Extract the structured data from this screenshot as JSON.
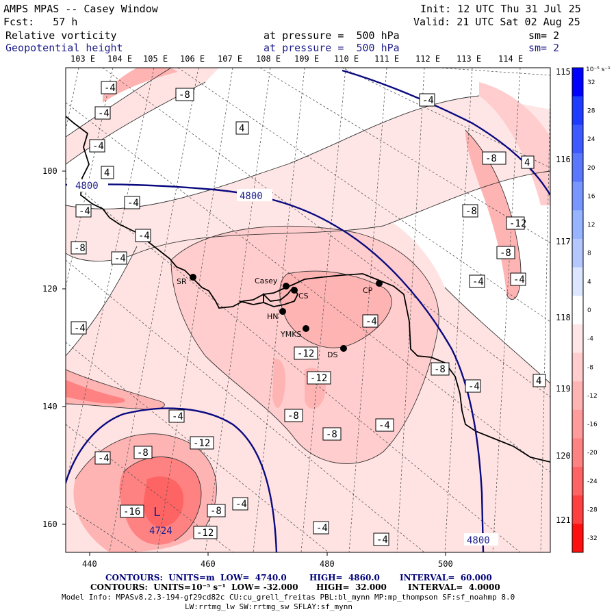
{
  "header": {
    "title": "AMPS MPAS -- Casey Window",
    "forecast": "Fcst:   57 h",
    "init": "Init: 12 UTC Thu 31 Jul 25",
    "valid": "Valid: 21 UTC Sat 02 Aug 25",
    "field1": {
      "name": "Relative vorticity",
      "level": "at pressure =  500 hPa",
      "smooth": "sm= 2"
    },
    "field2": {
      "name": "Geopotential height",
      "level": "at pressure =  500 hPa",
      "smooth": "sm= 2"
    }
  },
  "map": {
    "top_longitudes": [
      "103 E",
      "104 E",
      "105 E",
      "106 E",
      "107 E",
      "108 E",
      "109 E",
      "110 E",
      "111 E",
      "112 E",
      "113 E",
      "114 E"
    ],
    "right_longitudes": [
      "115 E",
      "116 E",
      "117 E",
      "118 E",
      "119 E",
      "120 E",
      "121 E"
    ],
    "x_ticks": [
      "440",
      "460",
      "480",
      "500"
    ],
    "y_ticks": [
      "100",
      "120",
      "140",
      "160"
    ],
    "stations": [
      {
        "code": "SR"
      },
      {
        "code": "Casey"
      },
      {
        "code": "CS"
      },
      {
        "code": "HN"
      },
      {
        "code": "YMKS"
      },
      {
        "code": "DS"
      },
      {
        "code": "CP"
      }
    ],
    "height_labels": [
      "4800",
      "4800",
      "4800",
      "4724"
    ],
    "low_marker": "L",
    "vorticity_labels": [
      "-4",
      "-8",
      "-4",
      "-4",
      "4",
      "4",
      "-4",
      "-4",
      "-4",
      "-4",
      "-8",
      "-4",
      "-8",
      "-12",
      "-12",
      "-12",
      "-8",
      "-8",
      "-8",
      "-4",
      "-4",
      "-4",
      "-4",
      "-4",
      "-8",
      "-16",
      "-8",
      "-12",
      "-4",
      "-4",
      "-4",
      "-4",
      "-12",
      "-8",
      "-8",
      "4",
      "4",
      "-4",
      "-4"
    ]
  },
  "colorbar": {
    "unit": "10⁻⁵ s⁻¹",
    "labels": [
      "32",
      "28",
      "24",
      "20",
      "16",
      "12",
      "8",
      "4",
      "0",
      "-4",
      "-8",
      "-12",
      "-16",
      "-20",
      "-24",
      "-28",
      "-32"
    ],
    "colors": [
      "#0000ff",
      "#1e3cff",
      "#3c5aff",
      "#5a78ff",
      "#7896ff",
      "#96b4ff",
      "#b4c8ff",
      "#dce6ff",
      "#ffffff",
      "#ffe6e6",
      "#ffcdcd",
      "#ffb4b4",
      "#ff9b9b",
      "#ff8282",
      "#ff6464",
      "#ff4040",
      "#ff1010"
    ]
  },
  "footer": {
    "line1": {
      "label": "CONTOURS:  UNITS=m  LOW=  4740.0",
      "high": "HIGH=  4860.0",
      "interval": "INTERVAL=  60.000"
    },
    "line2": {
      "label": "CONTOURS:  UNITS=10⁻⁵ s⁻¹  LOW= -32.000",
      "high": "HIGH=  32.000",
      "interval": "INTERVAL=  4.0000"
    },
    "line3": "Model Info: MPASv8.2.3-194-gf29cd82c CU:cu_grell_freitas PBL:bl_mynn MP:mp_thompson SF:sf_noahmp 8.0",
    "line4": "LW:rrtmg_lw SW:rrtmg_sw SFLAY:sf_mynn"
  }
}
